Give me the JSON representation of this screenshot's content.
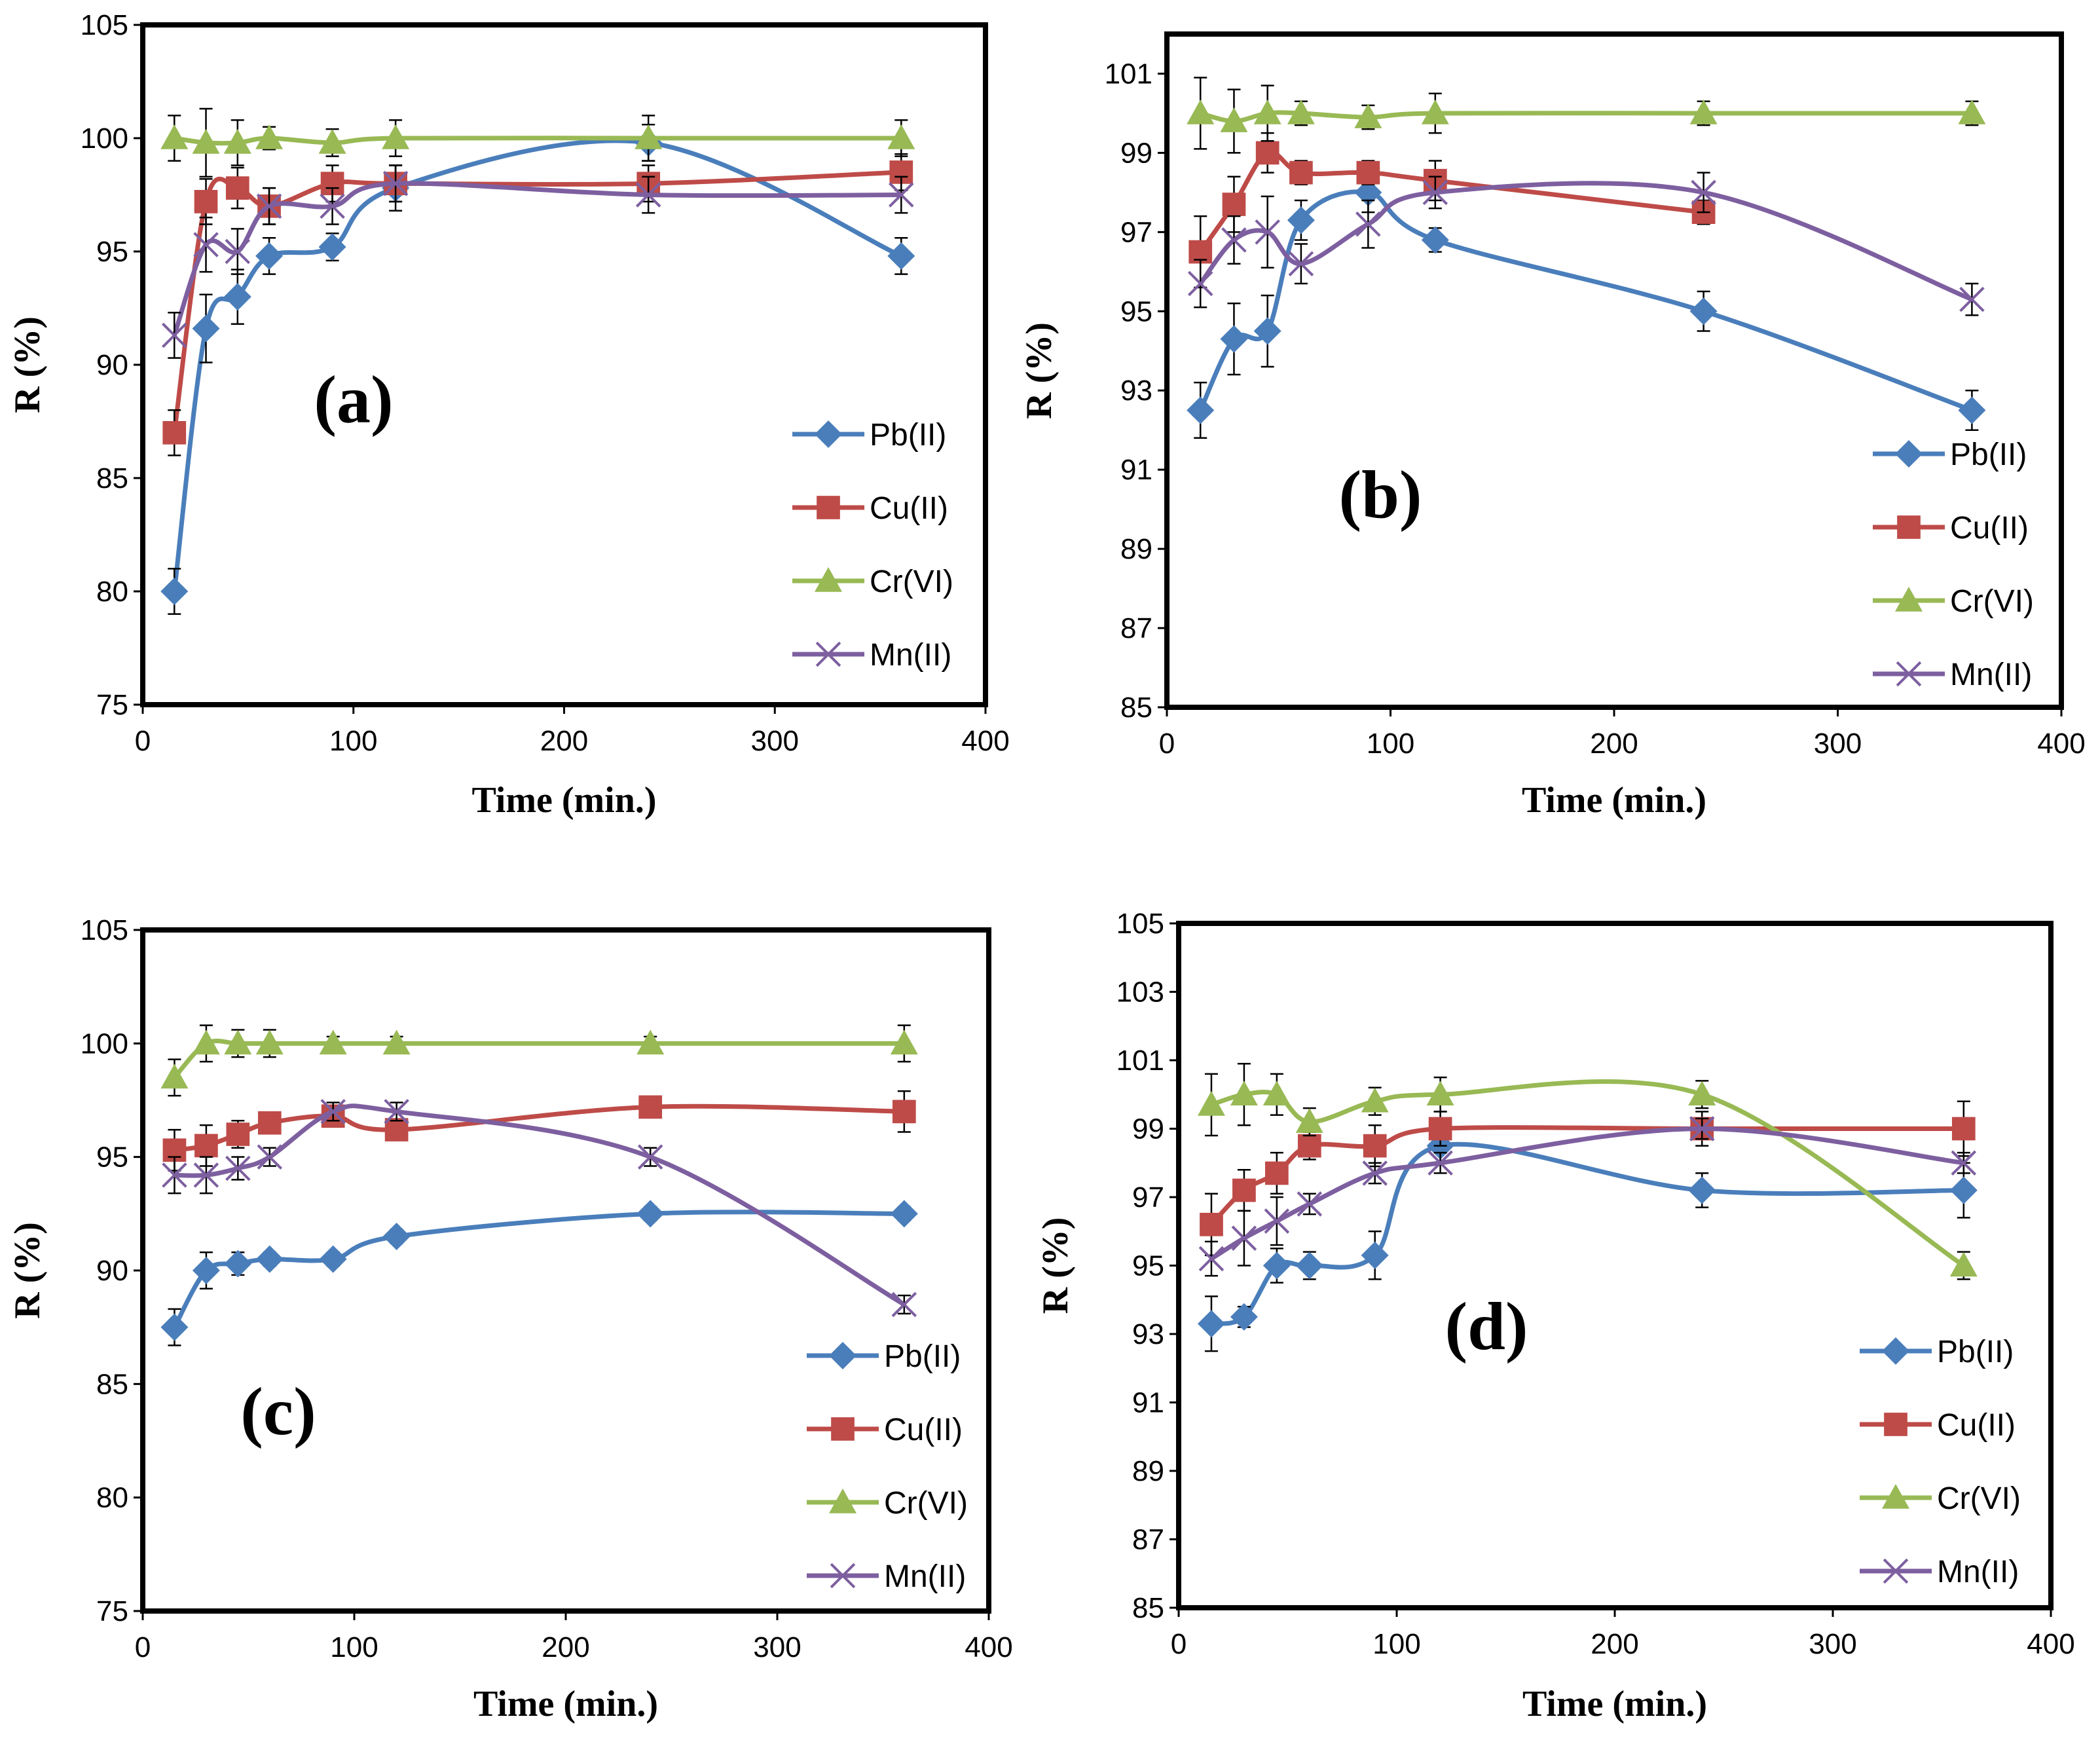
{
  "colors": {
    "Pb(II)": "#4A7EBB",
    "Cu(II)": "#BE4B48",
    "Cr(VI)": "#98B954",
    "Mn(II)": "#7D5FA0"
  },
  "chart_data": [
    {
      "type": "line",
      "panel_label": "(a)",
      "xlabel": "Time (min.)",
      "ylabel": "R (%)",
      "xlim": [
        0,
        400
      ],
      "ylim": [
        75,
        105
      ],
      "xticks": [
        "0",
        "100",
        "200",
        "300",
        "400"
      ],
      "yticks": [
        "75",
        "80",
        "85",
        "90",
        "95",
        "100",
        "105"
      ],
      "x": [
        15,
        30,
        45,
        60,
        90,
        120,
        240,
        360
      ],
      "series": [
        {
          "name": "Pb(II)",
          "marker": "diamond",
          "values": [
            80.0,
            91.6,
            93.0,
            94.8,
            95.2,
            97.8,
            99.8,
            94.8
          ],
          "errors": [
            1.0,
            1.5,
            1.2,
            0.8,
            0.6,
            1.0,
            0.8,
            0.8
          ]
        },
        {
          "name": "Cu(II)",
          "marker": "square",
          "values": [
            87.0,
            97.2,
            97.8,
            97.0,
            98.0,
            98.0,
            98.0,
            98.5
          ],
          "errors": [
            1.0,
            1.0,
            0.9,
            0.8,
            0.8,
            0.8,
            0.8,
            0.8
          ]
        },
        {
          "name": "Cr(VI)",
          "marker": "triangle",
          "values": [
            100.0,
            99.8,
            99.8,
            100.0,
            99.8,
            100.0,
            100.0,
            100.0
          ],
          "errors": [
            1.0,
            1.5,
            1.0,
            0.5,
            0.6,
            0.8,
            1.0,
            0.8
          ]
        },
        {
          "name": "Mn(II)",
          "marker": "x",
          "values": [
            91.3,
            95.3,
            95.0,
            97.0,
            97.0,
            98.0,
            97.5,
            97.5
          ],
          "errors": [
            1.0,
            1.2,
            1.0,
            0.8,
            0.8,
            0.8,
            0.8,
            0.8
          ]
        }
      ]
    },
    {
      "type": "line",
      "panel_label": "(b)",
      "xlabel": "Time (min.)",
      "ylabel": "R (%)",
      "xlim": [
        0,
        400
      ],
      "ylim": [
        85,
        102
      ],
      "xticks": [
        "0",
        "100",
        "200",
        "300",
        "400"
      ],
      "yticks": [
        "85",
        "87",
        "89",
        "91",
        "93",
        "95",
        "97",
        "99",
        "101"
      ],
      "x": [
        15,
        30,
        45,
        60,
        90,
        120,
        240,
        360
      ],
      "series": [
        {
          "name": "Pb(II)",
          "marker": "diamond",
          "values": [
            92.5,
            94.3,
            94.5,
            97.3,
            98.0,
            96.8,
            95.0,
            92.5
          ],
          "errors": [
            0.7,
            0.9,
            0.9,
            0.5,
            0.5,
            0.3,
            0.5,
            0.5
          ]
        },
        {
          "name": "Cu(II)",
          "marker": "square",
          "values": [
            96.5,
            97.7,
            99.0,
            98.5,
            98.5,
            98.3,
            97.5,
            null
          ],
          "errors": [
            0.9,
            0.7,
            0.5,
            0.3,
            0.3,
            0.5,
            0.3,
            null
          ]
        },
        {
          "name": "Cr(VI)",
          "marker": "triangle",
          "values": [
            100.0,
            99.8,
            100.0,
            100.0,
            99.9,
            100.0,
            100.0,
            100.0
          ],
          "errors": [
            0.9,
            0.8,
            0.7,
            0.3,
            0.3,
            0.5,
            0.3,
            0.3
          ]
        },
        {
          "name": "Mn(II)",
          "marker": "x",
          "values": [
            95.7,
            96.8,
            97.0,
            96.2,
            97.2,
            98.0,
            98.0,
            95.3
          ],
          "errors": [
            0.6,
            0.6,
            0.9,
            0.5,
            0.6,
            0.4,
            0.5,
            0.4
          ]
        }
      ]
    },
    {
      "type": "line",
      "panel_label": "(c)",
      "xlabel": "Time (min.)",
      "ylabel": "R (%)",
      "xlim": [
        0,
        400
      ],
      "ylim": [
        75,
        105
      ],
      "xticks": [
        "0",
        "100",
        "200",
        "300",
        "400"
      ],
      "yticks": [
        "75",
        "80",
        "85",
        "90",
        "95",
        "100",
        "105"
      ],
      "x": [
        15,
        30,
        45,
        60,
        90,
        120,
        240,
        360
      ],
      "series": [
        {
          "name": "Pb(II)",
          "marker": "diamond",
          "values": [
            87.5,
            90.0,
            90.3,
            90.5,
            90.5,
            91.5,
            92.5,
            92.5
          ],
          "errors": [
            0.8,
            0.8,
            0.5,
            0.3,
            0.3,
            0.3,
            0.3,
            0.3
          ]
        },
        {
          "name": "Cu(II)",
          "marker": "square",
          "values": [
            95.3,
            95.5,
            96.0,
            96.5,
            96.8,
            96.2,
            97.2,
            97.0
          ],
          "errors": [
            0.9,
            0.9,
            0.6,
            0.4,
            0.4,
            0.4,
            0.4,
            0.9
          ]
        },
        {
          "name": "Cr(VI)",
          "marker": "triangle",
          "values": [
            98.5,
            100.0,
            100.0,
            100.0,
            100.0,
            100.0,
            100.0,
            100.0
          ],
          "errors": [
            0.8,
            0.8,
            0.6,
            0.6,
            0.3,
            0.3,
            0.3,
            0.8
          ]
        },
        {
          "name": "Mn(II)",
          "marker": "x",
          "values": [
            94.2,
            94.2,
            94.5,
            95.0,
            97.0,
            97.0,
            95.0,
            88.5
          ],
          "errors": [
            0.8,
            0.8,
            0.5,
            0.4,
            0.4,
            0.4,
            0.4,
            0.4
          ]
        }
      ]
    },
    {
      "type": "line",
      "panel_label": "(d)",
      "xlabel": "Time (min.)",
      "ylabel": "R (%)",
      "xlim": [
        0,
        400
      ],
      "ylim": [
        85,
        105
      ],
      "xticks": [
        "0",
        "100",
        "200",
        "300",
        "400"
      ],
      "yticks": [
        "85",
        "87",
        "89",
        "91",
        "93",
        "95",
        "97",
        "99",
        "101",
        "103",
        "105"
      ],
      "x": [
        15,
        30,
        45,
        60,
        90,
        120,
        240,
        360
      ],
      "series": [
        {
          "name": "Pb(II)",
          "marker": "diamond",
          "values": [
            93.3,
            93.5,
            95.0,
            95.0,
            95.3,
            98.5,
            97.2,
            97.2
          ],
          "errors": [
            0.8,
            0.3,
            0.5,
            0.4,
            0.7,
            0.5,
            0.5,
            0.8
          ]
        },
        {
          "name": "Cu(II)",
          "marker": "square",
          "values": [
            96.2,
            97.2,
            97.7,
            98.5,
            98.5,
            99.0,
            99.0,
            99.0
          ],
          "errors": [
            0.9,
            0.6,
            0.6,
            0.4,
            0.6,
            0.5,
            0.5,
            0.8
          ]
        },
        {
          "name": "Cr(VI)",
          "marker": "triangle",
          "values": [
            99.7,
            100.0,
            100.0,
            99.2,
            99.8,
            100.0,
            100.0,
            95.0
          ],
          "errors": [
            0.9,
            0.9,
            0.6,
            0.4,
            0.4,
            0.5,
            0.4,
            0.4
          ]
        },
        {
          "name": "Mn(II)",
          "marker": "x",
          "values": [
            95.2,
            95.8,
            96.3,
            96.8,
            97.7,
            98.0,
            99.0,
            98.0
          ],
          "errors": [
            0.5,
            0.8,
            0.7,
            0.3,
            0.3,
            0.3,
            0.3,
            0.3
          ]
        }
      ]
    }
  ]
}
